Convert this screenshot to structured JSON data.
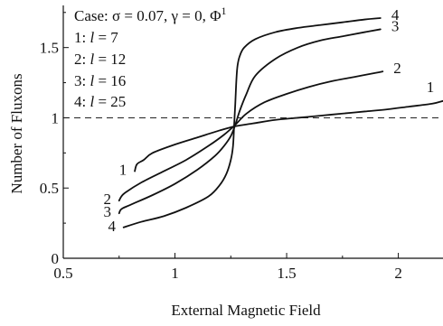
{
  "chart_data": {
    "type": "line",
    "title": "",
    "xlabel": "External Magnetic Field",
    "ylabel": "Number of Fluxons",
    "xlim": [
      0.5,
      2.2
    ],
    "ylim": [
      0,
      1.8
    ],
    "x_ticks": [
      0.5,
      1,
      1.5,
      2
    ],
    "x_tick_labels": [
      "0.5",
      "1",
      "1.5",
      "2"
    ],
    "y_ticks": [
      0,
      0.5,
      1,
      1.5
    ],
    "y_tick_labels": [
      "0",
      "0.5",
      "1",
      "1.5"
    ],
    "grid": false,
    "reference_line": {
      "y": 1,
      "style": "dashed"
    },
    "annotation": {
      "case_text": "Case: σ = 0.07, γ = 0, Φ",
      "case_superscript": "1",
      "legend": [
        {
          "key": "1:",
          "var": "l",
          "eq": " = 7"
        },
        {
          "key": "2:",
          "var": "l",
          "eq": " = 12"
        },
        {
          "key": "3:",
          "var": "l",
          "eq": " = 16"
        },
        {
          "key": "4:",
          "var": "l",
          "eq": " = 25"
        }
      ]
    },
    "series": [
      {
        "label": "1",
        "x": [
          0.82,
          0.83,
          0.86,
          0.9,
          1.0,
          1.1,
          1.2,
          1.27,
          1.35,
          1.45,
          1.55,
          1.65,
          1.75,
          1.85,
          1.95,
          2.05,
          2.15,
          2.2
        ],
        "y": [
          0.62,
          0.67,
          0.7,
          0.75,
          0.81,
          0.86,
          0.91,
          0.94,
          0.96,
          0.985,
          1.0,
          1.015,
          1.03,
          1.045,
          1.06,
          1.08,
          1.1,
          1.12
        ]
      },
      {
        "label": "2",
        "x": [
          0.75,
          0.76,
          0.78,
          0.85,
          0.95,
          1.05,
          1.15,
          1.22,
          1.27,
          1.32,
          1.4,
          1.5,
          1.6,
          1.7,
          1.8,
          1.9,
          1.93
        ],
        "y": [
          0.41,
          0.44,
          0.47,
          0.54,
          0.62,
          0.7,
          0.8,
          0.88,
          0.95,
          1.03,
          1.11,
          1.17,
          1.22,
          1.26,
          1.29,
          1.32,
          1.33
        ]
      },
      {
        "label": "3",
        "x": [
          0.75,
          0.76,
          0.8,
          0.9,
          1.0,
          1.1,
          1.18,
          1.22,
          1.25,
          1.27,
          1.29,
          1.32,
          1.36,
          1.45,
          1.55,
          1.65,
          1.75,
          1.85,
          1.92
        ],
        "y": [
          0.32,
          0.35,
          0.38,
          0.45,
          0.53,
          0.63,
          0.73,
          0.8,
          0.87,
          0.95,
          1.05,
          1.17,
          1.3,
          1.42,
          1.5,
          1.55,
          1.58,
          1.61,
          1.63
        ]
      },
      {
        "label": "4",
        "x": [
          0.77,
          0.85,
          0.95,
          1.05,
          1.15,
          1.2,
          1.23,
          1.25,
          1.26,
          1.265,
          1.27,
          1.275,
          1.28,
          1.29,
          1.31,
          1.36,
          1.45,
          1.55,
          1.65,
          1.75,
          1.85,
          1.92
        ],
        "y": [
          0.22,
          0.26,
          0.3,
          0.36,
          0.44,
          0.52,
          0.6,
          0.7,
          0.8,
          0.95,
          1.1,
          1.27,
          1.37,
          1.44,
          1.5,
          1.56,
          1.61,
          1.64,
          1.66,
          1.68,
          1.7,
          1.71
        ]
      }
    ]
  }
}
